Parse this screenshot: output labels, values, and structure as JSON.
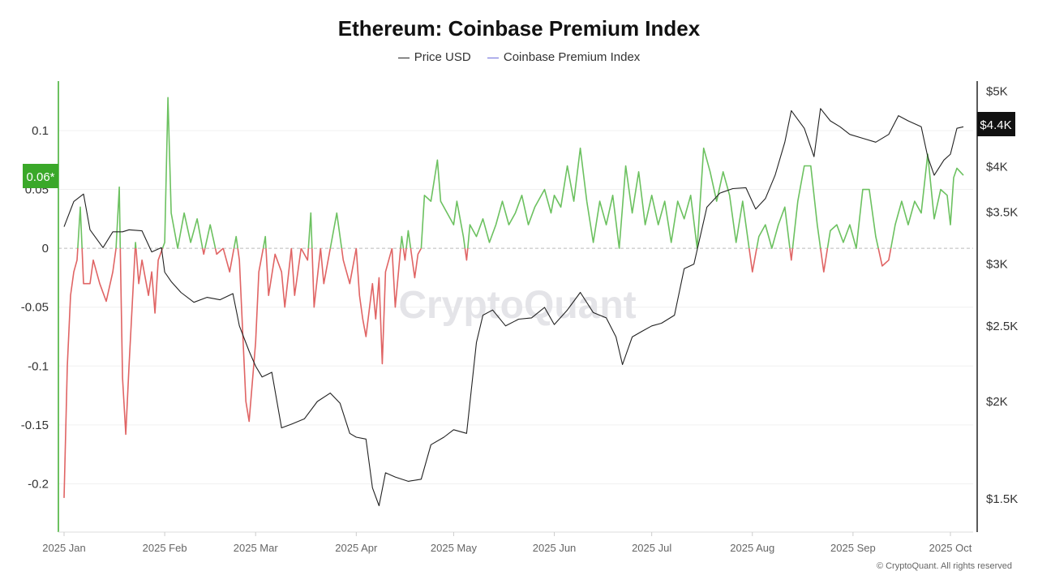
{
  "title": "Ethereum: Coinbase Premium Index",
  "legend": [
    {
      "label": "Price USD",
      "color": "#222222"
    },
    {
      "label": "Coinbase Premium Index",
      "color": "#6b6bdb"
    }
  ],
  "watermark": "CryptoQuant",
  "copyright": "© CryptoQuant. All rights reserved",
  "colors": {
    "positive": "#6cc160",
    "negative": "#e06464",
    "price": "#222222",
    "axis": "#222222"
  },
  "chart_data": {
    "type": "line",
    "x_range": [
      "2025-01-01",
      "2025-10-05"
    ],
    "x_tick_labels": [
      "2025 Jan",
      "2025 Feb",
      "2025 Mar",
      "2025 Apr",
      "2025 May",
      "2025 Jun",
      "2025 Jul",
      "2025 Aug",
      "2025 Sep",
      "2025 Oct"
    ],
    "x_tick_dates": [
      "2025-01-01",
      "2025-02-01",
      "2025-03-01",
      "2025-04-01",
      "2025-05-01",
      "2025-06-01",
      "2025-07-01",
      "2025-08-01",
      "2025-09-01",
      "2025-10-01"
    ],
    "left_axis": {
      "ticks": [
        0.1,
        0.05,
        0,
        -0.05,
        -0.1,
        -0.15,
        -0.2
      ],
      "tick_labels": [
        "0.1",
        "0.05",
        "0",
        "-0.05",
        "-0.1",
        "-0.15",
        "-0.2"
      ],
      "range": [
        -0.241,
        0.142
      ]
    },
    "right_axis": {
      "scale": "log",
      "ticks": [
        5000,
        4000,
        3500,
        3000,
        2500,
        2000,
        1500
      ],
      "tick_labels": [
        "$5K",
        "$4K",
        "$3.5K",
        "$3K",
        "$2.5K",
        "$2K",
        "$1.5K"
      ],
      "range": [
        1360,
        5150
      ]
    },
    "current_labels": {
      "premium": "0.06*",
      "price": "$4.4K"
    },
    "series": [
      {
        "name": "Price USD",
        "axis": "right",
        "points": [
          [
            "2025-01-01",
            3350
          ],
          [
            "2025-01-04",
            3610
          ],
          [
            "2025-01-07",
            3690
          ],
          [
            "2025-01-09",
            3320
          ],
          [
            "2025-01-13",
            3150
          ],
          [
            "2025-01-16",
            3300
          ],
          [
            "2025-01-19",
            3300
          ],
          [
            "2025-01-21",
            3320
          ],
          [
            "2025-01-25",
            3310
          ],
          [
            "2025-01-28",
            3110
          ],
          [
            "2025-01-31",
            3150
          ],
          [
            "2025-02-01",
            2930
          ],
          [
            "2025-02-03",
            2850
          ],
          [
            "2025-02-06",
            2760
          ],
          [
            "2025-02-10",
            2680
          ],
          [
            "2025-02-14",
            2720
          ],
          [
            "2025-02-18",
            2700
          ],
          [
            "2025-02-22",
            2750
          ],
          [
            "2025-02-24",
            2500
          ],
          [
            "2025-02-27",
            2320
          ],
          [
            "2025-03-01",
            2220
          ],
          [
            "2025-03-03",
            2150
          ],
          [
            "2025-03-06",
            2180
          ],
          [
            "2025-03-09",
            1850
          ],
          [
            "2025-03-12",
            1870
          ],
          [
            "2025-03-16",
            1900
          ],
          [
            "2025-03-20",
            2000
          ],
          [
            "2025-03-24",
            2050
          ],
          [
            "2025-03-27",
            1990
          ],
          [
            "2025-03-30",
            1820
          ],
          [
            "2025-04-01",
            1800
          ],
          [
            "2025-04-04",
            1790
          ],
          [
            "2025-04-06",
            1550
          ],
          [
            "2025-04-08",
            1470
          ],
          [
            "2025-04-10",
            1620
          ],
          [
            "2025-04-13",
            1600
          ],
          [
            "2025-04-17",
            1580
          ],
          [
            "2025-04-21",
            1590
          ],
          [
            "2025-04-24",
            1760
          ],
          [
            "2025-04-28",
            1800
          ],
          [
            "2025-05-01",
            1840
          ],
          [
            "2025-05-05",
            1820
          ],
          [
            "2025-05-08",
            2380
          ],
          [
            "2025-05-10",
            2580
          ],
          [
            "2025-05-13",
            2620
          ],
          [
            "2025-05-17",
            2500
          ],
          [
            "2025-05-21",
            2550
          ],
          [
            "2025-05-25",
            2560
          ],
          [
            "2025-05-29",
            2640
          ],
          [
            "2025-06-01",
            2510
          ],
          [
            "2025-06-05",
            2620
          ],
          [
            "2025-06-09",
            2760
          ],
          [
            "2025-06-13",
            2600
          ],
          [
            "2025-06-17",
            2560
          ],
          [
            "2025-06-20",
            2420
          ],
          [
            "2025-06-22",
            2230
          ],
          [
            "2025-06-25",
            2420
          ],
          [
            "2025-06-28",
            2460
          ],
          [
            "2025-07-01",
            2500
          ],
          [
            "2025-07-04",
            2520
          ],
          [
            "2025-07-08",
            2580
          ],
          [
            "2025-07-11",
            2960
          ],
          [
            "2025-07-14",
            3000
          ],
          [
            "2025-07-18",
            3550
          ],
          [
            "2025-07-22",
            3700
          ],
          [
            "2025-07-26",
            3750
          ],
          [
            "2025-07-30",
            3760
          ],
          [
            "2025-08-02",
            3530
          ],
          [
            "2025-08-05",
            3640
          ],
          [
            "2025-08-08",
            3900
          ],
          [
            "2025-08-11",
            4300
          ],
          [
            "2025-08-13",
            4720
          ],
          [
            "2025-08-17",
            4480
          ],
          [
            "2025-08-20",
            4120
          ],
          [
            "2025-08-22",
            4750
          ],
          [
            "2025-08-25",
            4580
          ],
          [
            "2025-08-28",
            4500
          ],
          [
            "2025-08-31",
            4400
          ],
          [
            "2025-09-04",
            4350
          ],
          [
            "2025-09-08",
            4300
          ],
          [
            "2025-09-12",
            4400
          ],
          [
            "2025-09-15",
            4650
          ],
          [
            "2025-09-18",
            4580
          ],
          [
            "2025-09-22",
            4500
          ],
          [
            "2025-09-24",
            4120
          ],
          [
            "2025-09-26",
            3900
          ],
          [
            "2025-09-29",
            4080
          ],
          [
            "2025-10-01",
            4150
          ],
          [
            "2025-10-03",
            4480
          ],
          [
            "2025-10-05",
            4500
          ]
        ]
      },
      {
        "name": "Coinbase Premium Index",
        "axis": "left",
        "points": [
          [
            "2025-01-01",
            -0.212
          ],
          [
            "2025-01-02",
            -0.1
          ],
          [
            "2025-01-03",
            -0.04
          ],
          [
            "2025-01-04",
            -0.02
          ],
          [
            "2025-01-05",
            -0.01
          ],
          [
            "2025-01-06",
            0.035
          ],
          [
            "2025-01-07",
            -0.03
          ],
          [
            "2025-01-09",
            -0.03
          ],
          [
            "2025-01-10",
            -0.01
          ],
          [
            "2025-01-12",
            -0.03
          ],
          [
            "2025-01-14",
            -0.045
          ],
          [
            "2025-01-16",
            -0.02
          ],
          [
            "2025-01-17",
            0.0
          ],
          [
            "2025-01-18",
            0.052
          ],
          [
            "2025-01-19",
            -0.11
          ],
          [
            "2025-01-20",
            -0.158
          ],
          [
            "2025-01-21",
            -0.1
          ],
          [
            "2025-01-23",
            0.005
          ],
          [
            "2025-01-24",
            -0.03
          ],
          [
            "2025-01-25",
            -0.01
          ],
          [
            "2025-01-27",
            -0.04
          ],
          [
            "2025-01-28",
            -0.02
          ],
          [
            "2025-01-29",
            -0.055
          ],
          [
            "2025-01-30",
            -0.01
          ],
          [
            "2025-02-01",
            0.005
          ],
          [
            "2025-02-02",
            0.128
          ],
          [
            "2025-02-03",
            0.03
          ],
          [
            "2025-02-05",
            0.0
          ],
          [
            "2025-02-07",
            0.03
          ],
          [
            "2025-02-09",
            0.005
          ],
          [
            "2025-02-11",
            0.025
          ],
          [
            "2025-02-13",
            -0.005
          ],
          [
            "2025-02-15",
            0.02
          ],
          [
            "2025-02-17",
            -0.005
          ],
          [
            "2025-02-19",
            0.0
          ],
          [
            "2025-02-21",
            -0.02
          ],
          [
            "2025-02-23",
            0.01
          ],
          [
            "2025-02-24",
            -0.01
          ],
          [
            "2025-02-26",
            -0.13
          ],
          [
            "2025-02-27",
            -0.147
          ],
          [
            "2025-03-01",
            -0.08
          ],
          [
            "2025-03-02",
            -0.02
          ],
          [
            "2025-03-04",
            0.01
          ],
          [
            "2025-03-05",
            -0.04
          ],
          [
            "2025-03-07",
            -0.005
          ],
          [
            "2025-03-09",
            -0.02
          ],
          [
            "2025-03-10",
            -0.05
          ],
          [
            "2025-03-12",
            0.0
          ],
          [
            "2025-03-13",
            -0.04
          ],
          [
            "2025-03-15",
            0.0
          ],
          [
            "2025-03-17",
            -0.01
          ],
          [
            "2025-03-18",
            0.03
          ],
          [
            "2025-03-19",
            -0.05
          ],
          [
            "2025-03-21",
            0.0
          ],
          [
            "2025-03-22",
            -0.03
          ],
          [
            "2025-03-24",
            0.0
          ],
          [
            "2025-03-26",
            0.03
          ],
          [
            "2025-03-28",
            -0.01
          ],
          [
            "2025-03-30",
            -0.03
          ],
          [
            "2025-04-01",
            0.0
          ],
          [
            "2025-04-02",
            -0.04
          ],
          [
            "2025-04-03",
            -0.06
          ],
          [
            "2025-04-04",
            -0.075
          ],
          [
            "2025-04-06",
            -0.03
          ],
          [
            "2025-04-07",
            -0.06
          ],
          [
            "2025-04-08",
            -0.025
          ],
          [
            "2025-04-09",
            -0.098
          ],
          [
            "2025-04-10",
            -0.02
          ],
          [
            "2025-04-12",
            0.0
          ],
          [
            "2025-04-13",
            -0.05
          ],
          [
            "2025-04-14",
            -0.02
          ],
          [
            "2025-04-15",
            0.01
          ],
          [
            "2025-04-16",
            -0.01
          ],
          [
            "2025-04-17",
            0.015
          ],
          [
            "2025-04-19",
            -0.025
          ],
          [
            "2025-04-20",
            -0.005
          ],
          [
            "2025-04-21",
            0.0
          ],
          [
            "2025-04-22",
            0.045
          ],
          [
            "2025-04-24",
            0.04
          ],
          [
            "2025-04-26",
            0.075
          ],
          [
            "2025-04-27",
            0.04
          ],
          [
            "2025-04-29",
            0.03
          ],
          [
            "2025-05-01",
            0.02
          ],
          [
            "2025-05-02",
            0.04
          ],
          [
            "2025-05-04",
            0.01
          ],
          [
            "2025-05-05",
            -0.01
          ],
          [
            "2025-05-06",
            0.02
          ],
          [
            "2025-05-08",
            0.01
          ],
          [
            "2025-05-10",
            0.025
          ],
          [
            "2025-05-12",
            0.005
          ],
          [
            "2025-05-14",
            0.02
          ],
          [
            "2025-05-16",
            0.04
          ],
          [
            "2025-05-18",
            0.02
          ],
          [
            "2025-05-20",
            0.03
          ],
          [
            "2025-05-22",
            0.045
          ],
          [
            "2025-05-24",
            0.02
          ],
          [
            "2025-05-26",
            0.035
          ],
          [
            "2025-05-29",
            0.05
          ],
          [
            "2025-05-31",
            0.03
          ],
          [
            "2025-06-01",
            0.045
          ],
          [
            "2025-06-03",
            0.035
          ],
          [
            "2025-06-05",
            0.07
          ],
          [
            "2025-06-07",
            0.04
          ],
          [
            "2025-06-09",
            0.085
          ],
          [
            "2025-06-11",
            0.04
          ],
          [
            "2025-06-13",
            0.005
          ],
          [
            "2025-06-15",
            0.04
          ],
          [
            "2025-06-17",
            0.02
          ],
          [
            "2025-06-19",
            0.045
          ],
          [
            "2025-06-21",
            0.0
          ],
          [
            "2025-06-23",
            0.07
          ],
          [
            "2025-06-25",
            0.03
          ],
          [
            "2025-06-27",
            0.065
          ],
          [
            "2025-06-29",
            0.02
          ],
          [
            "2025-07-01",
            0.045
          ],
          [
            "2025-07-03",
            0.02
          ],
          [
            "2025-07-05",
            0.04
          ],
          [
            "2025-07-07",
            0.005
          ],
          [
            "2025-07-09",
            0.04
          ],
          [
            "2025-07-11",
            0.025
          ],
          [
            "2025-07-13",
            0.045
          ],
          [
            "2025-07-15",
            0.0
          ],
          [
            "2025-07-17",
            0.085
          ],
          [
            "2025-07-19",
            0.065
          ],
          [
            "2025-07-21",
            0.04
          ],
          [
            "2025-07-23",
            0.065
          ],
          [
            "2025-07-25",
            0.045
          ],
          [
            "2025-07-27",
            0.005
          ],
          [
            "2025-07-29",
            0.04
          ],
          [
            "2025-07-31",
            0.0
          ],
          [
            "2025-08-01",
            -0.02
          ],
          [
            "2025-08-03",
            0.01
          ],
          [
            "2025-08-05",
            0.02
          ],
          [
            "2025-08-07",
            0.0
          ],
          [
            "2025-08-09",
            0.02
          ],
          [
            "2025-08-11",
            0.035
          ],
          [
            "2025-08-13",
            -0.01
          ],
          [
            "2025-08-15",
            0.04
          ],
          [
            "2025-08-17",
            0.07
          ],
          [
            "2025-08-19",
            0.07
          ],
          [
            "2025-08-21",
            0.02
          ],
          [
            "2025-08-23",
            -0.02
          ],
          [
            "2025-08-25",
            0.015
          ],
          [
            "2025-08-27",
            0.02
          ],
          [
            "2025-08-29",
            0.005
          ],
          [
            "2025-08-31",
            0.02
          ],
          [
            "2025-09-02",
            0.0
          ],
          [
            "2025-09-04",
            0.05
          ],
          [
            "2025-09-06",
            0.05
          ],
          [
            "2025-09-08",
            0.01
          ],
          [
            "2025-09-10",
            -0.015
          ],
          [
            "2025-09-12",
            -0.01
          ],
          [
            "2025-09-14",
            0.02
          ],
          [
            "2025-09-16",
            0.04
          ],
          [
            "2025-09-18",
            0.02
          ],
          [
            "2025-09-20",
            0.04
          ],
          [
            "2025-09-22",
            0.03
          ],
          [
            "2025-09-24",
            0.08
          ],
          [
            "2025-09-26",
            0.025
          ],
          [
            "2025-09-28",
            0.05
          ],
          [
            "2025-09-30",
            0.045
          ],
          [
            "2025-10-01",
            0.02
          ],
          [
            "2025-10-02",
            0.06
          ],
          [
            "2025-10-03",
            0.068
          ],
          [
            "2025-10-05",
            0.062
          ]
        ]
      }
    ]
  }
}
